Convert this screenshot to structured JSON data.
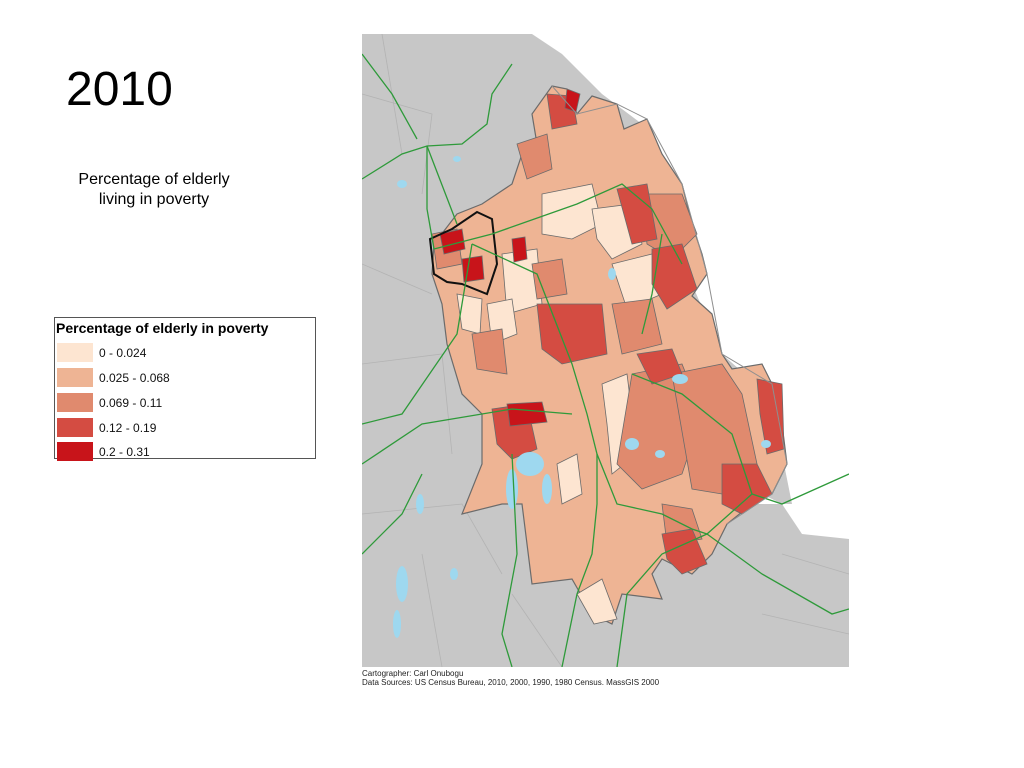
{
  "slide": {
    "year_title": "2010",
    "subtitle_line1": "Percentage of elderly",
    "subtitle_line2": "living in poverty"
  },
  "legend": {
    "title": "Percentage of elderly in poverty",
    "items": [
      {
        "label": "0 - 0.024",
        "color": "#fde5d1"
      },
      {
        "label": "0.025 - 0.068",
        "color": "#eeb494"
      },
      {
        "label": "0.069 - 0.11",
        "color": "#e08a6e"
      },
      {
        "label": "0.12 - 0.19",
        "color": "#d44c42"
      },
      {
        "label": "0.2 - 0.31",
        "color": "#c8141a"
      }
    ]
  },
  "map": {
    "background_land_color": "#c7c7c7",
    "water_color": "#9ed8ef",
    "road_color": "#2e9a3a",
    "boundary_color": "#6b6b6b"
  },
  "credits": {
    "cartographer": "Cartographer: Carl Onubogu",
    "sources": "Data Sources: US Census Bureau, 2010, 2000, 1990, 1980 Census. MassGIS 2000"
  }
}
